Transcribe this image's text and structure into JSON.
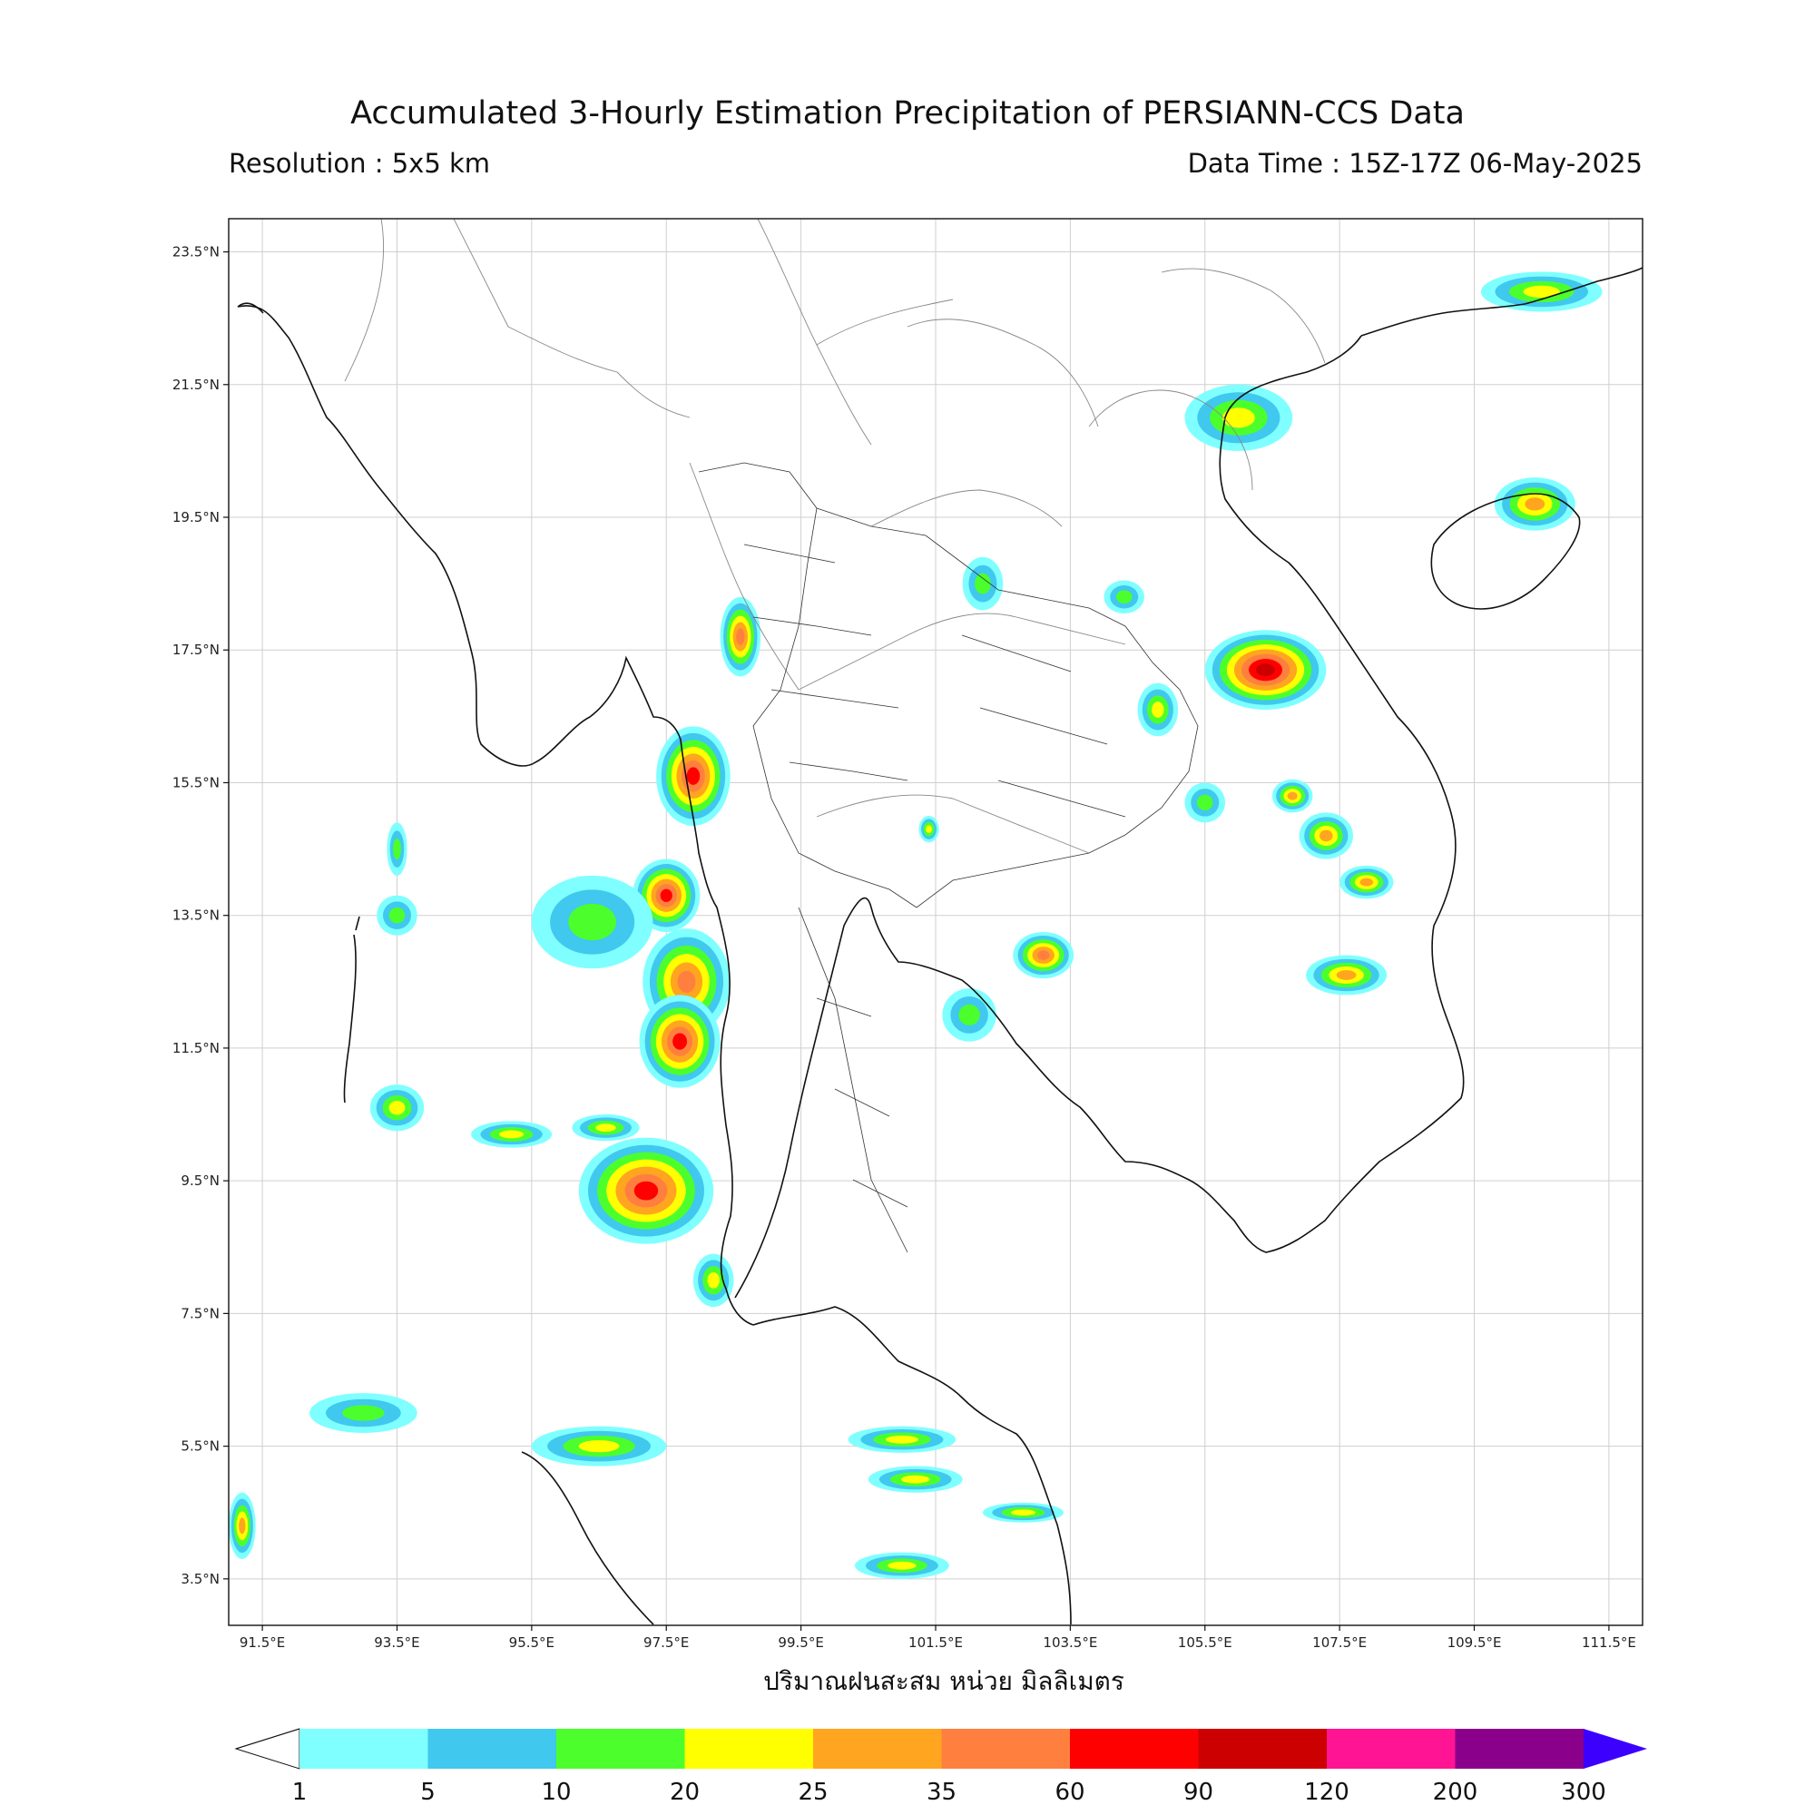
{
  "header": {
    "title": "Accumulated 3-Hourly Estimation Precipitation of PERSIANN-CCS Data",
    "resolution": "Resolution : 5x5 km",
    "data_time": "Data Time : 15Z-17Z 06-May-2025"
  },
  "map": {
    "lon_range": [
      91.0,
      112.0
    ],
    "lat_range": [
      2.8,
      24.0
    ],
    "lat_ticks": [
      "23.5°N",
      "21.5°N",
      "19.5°N",
      "17.5°N",
      "15.5°N",
      "13.5°N",
      "11.5°N",
      "9.5°N",
      "7.5°N",
      "5.5°N",
      "3.5°N"
    ],
    "lat_values": [
      23.5,
      21.5,
      19.5,
      17.5,
      15.5,
      13.5,
      11.5,
      9.5,
      7.5,
      5.5,
      3.5
    ],
    "lon_ticks": [
      "91.5°E",
      "93.5°E",
      "95.5°E",
      "97.5°E",
      "99.5°E",
      "101.5°E",
      "103.5°E",
      "105.5°E",
      "107.5°E",
      "109.5°E",
      "111.5°E"
    ],
    "lon_values": [
      91.5,
      93.5,
      95.5,
      97.5,
      99.5,
      101.5,
      103.5,
      105.5,
      107.5,
      109.5,
      111.5
    ],
    "gridlines": true,
    "precip_cells": [
      {
        "lon": 97.9,
        "lat": 15.6,
        "rx": 0.55,
        "ry": 0.75,
        "level": 6
      },
      {
        "lon": 97.5,
        "lat": 13.8,
        "rx": 0.5,
        "ry": 0.55,
        "level": 6
      },
      {
        "lon": 97.8,
        "lat": 12.5,
        "rx": 0.65,
        "ry": 0.8,
        "level": 5
      },
      {
        "lon": 97.7,
        "lat": 11.6,
        "rx": 0.6,
        "ry": 0.7,
        "level": 6
      },
      {
        "lon": 97.2,
        "lat": 9.35,
        "rx": 1.0,
        "ry": 0.8,
        "level": 6
      },
      {
        "lon": 98.6,
        "lat": 17.7,
        "rx": 0.3,
        "ry": 0.6,
        "level": 5
      },
      {
        "lon": 106.4,
        "lat": 17.2,
        "rx": 0.9,
        "ry": 0.6,
        "level": 7
      },
      {
        "lon": 103.1,
        "lat": 12.9,
        "rx": 0.45,
        "ry": 0.35,
        "level": 5
      },
      {
        "lon": 107.3,
        "lat": 14.7,
        "rx": 0.4,
        "ry": 0.35,
        "level": 4
      },
      {
        "lon": 107.9,
        "lat": 14.0,
        "rx": 0.4,
        "ry": 0.25,
        "level": 4
      },
      {
        "lon": 107.6,
        "lat": 12.6,
        "rx": 0.6,
        "ry": 0.3,
        "level": 4
      },
      {
        "lon": 106.8,
        "lat": 15.3,
        "rx": 0.3,
        "ry": 0.25,
        "level": 4
      },
      {
        "lon": 110.4,
        "lat": 19.7,
        "rx": 0.6,
        "ry": 0.4,
        "level": 4
      },
      {
        "lon": 110.5,
        "lat": 22.9,
        "rx": 0.9,
        "ry": 0.3,
        "level": 3
      },
      {
        "lon": 106.0,
        "lat": 21.0,
        "rx": 0.8,
        "ry": 0.5,
        "level": 3
      },
      {
        "lon": 102.2,
        "lat": 18.5,
        "rx": 0.3,
        "ry": 0.4,
        "level": 2
      },
      {
        "lon": 93.5,
        "lat": 10.6,
        "rx": 0.4,
        "ry": 0.35,
        "level": 3
      },
      {
        "lon": 95.2,
        "lat": 10.2,
        "rx": 0.6,
        "ry": 0.2,
        "level": 3
      },
      {
        "lon": 96.6,
        "lat": 10.3,
        "rx": 0.5,
        "ry": 0.2,
        "level": 3
      },
      {
        "lon": 96.4,
        "lat": 13.4,
        "rx": 0.9,
        "ry": 0.7,
        "level": 2
      },
      {
        "lon": 96.5,
        "lat": 5.5,
        "rx": 1.0,
        "ry": 0.3,
        "level": 3
      },
      {
        "lon": 101.0,
        "lat": 5.6,
        "rx": 0.8,
        "ry": 0.2,
        "level": 3
      },
      {
        "lon": 101.2,
        "lat": 5.0,
        "rx": 0.7,
        "ry": 0.2,
        "level": 3
      },
      {
        "lon": 102.8,
        "lat": 4.5,
        "rx": 0.6,
        "ry": 0.15,
        "level": 3
      },
      {
        "lon": 101.0,
        "lat": 3.7,
        "rx": 0.7,
        "ry": 0.2,
        "level": 3
      },
      {
        "lon": 93.0,
        "lat": 6.0,
        "rx": 0.8,
        "ry": 0.3,
        "level": 2
      },
      {
        "lon": 91.2,
        "lat": 4.3,
        "rx": 0.2,
        "ry": 0.5,
        "level": 4
      },
      {
        "lon": 98.2,
        "lat": 8.0,
        "rx": 0.3,
        "ry": 0.4,
        "level": 3
      },
      {
        "lon": 104.8,
        "lat": 16.6,
        "rx": 0.3,
        "ry": 0.4,
        "level": 3
      },
      {
        "lon": 105.5,
        "lat": 15.2,
        "rx": 0.3,
        "ry": 0.3,
        "level": 2
      },
      {
        "lon": 102.0,
        "lat": 12.0,
        "rx": 0.4,
        "ry": 0.4,
        "level": 2
      },
      {
        "lon": 93.5,
        "lat": 13.5,
        "rx": 0.3,
        "ry": 0.3,
        "level": 2
      },
      {
        "lon": 93.5,
        "lat": 14.5,
        "rx": 0.15,
        "ry": 0.4,
        "level": 2
      },
      {
        "lon": 101.4,
        "lat": 14.8,
        "rx": 0.15,
        "ry": 0.2,
        "level": 3
      },
      {
        "lon": 104.3,
        "lat": 18.3,
        "rx": 0.3,
        "ry": 0.25,
        "level": 2
      }
    ]
  },
  "xlabel": "ปริมาณฝนสะสม หน่วย มิลลิเมตร",
  "colorbar": {
    "colors": [
      "#7fffff",
      "#40c8ee",
      "#4cff2c",
      "#ffff00",
      "#ffa520",
      "#ff7f3f",
      "#ff0000",
      "#cc0000",
      "#ff1493",
      "#8b008b"
    ],
    "over_color": "#3c00ff",
    "under_color": "#ffffff",
    "labels": [
      "1",
      "5",
      "10",
      "20",
      "25",
      "35",
      "60",
      "90",
      "120",
      "200",
      "300"
    ]
  }
}
